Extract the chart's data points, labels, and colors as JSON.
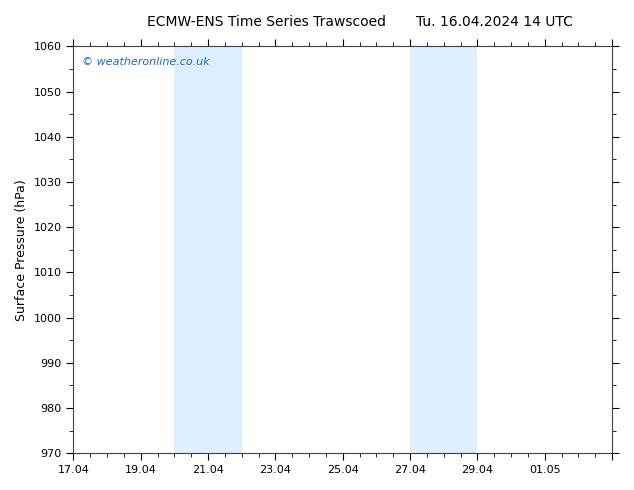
{
  "title_left": "ECMW-ENS Time Series Trawscoed",
  "title_right": "Tu. 16.04.2024 14 UTC",
  "ylabel": "Surface Pressure (hPa)",
  "ylim": [
    970,
    1060
  ],
  "yticks": [
    970,
    980,
    990,
    1000,
    1010,
    1020,
    1030,
    1040,
    1050,
    1060
  ],
  "x_total_days": 16,
  "xtick_major_positions": [
    0,
    2,
    4,
    6,
    8,
    10,
    12,
    14,
    16
  ],
  "xtick_labels": [
    "17.04",
    "19.04",
    "21.04",
    "23.04",
    "25.04",
    "27.04",
    "29.04",
    "01.05",
    ""
  ],
  "shaded_bands": [
    {
      "x_start": 3,
      "x_end": 5
    },
    {
      "x_start": 10,
      "x_end": 12
    }
  ],
  "shaded_color": "#ddeeff",
  "background_color": "#ffffff",
  "plot_bg_color": "#ffffff",
  "border_color": "#404040",
  "watermark_text": "© weatheronline.co.uk",
  "watermark_color": "#1a6bbf",
  "watermark_fontsize": 8,
  "title_fontsize": 10,
  "ylabel_fontsize": 9,
  "tick_fontsize": 8
}
